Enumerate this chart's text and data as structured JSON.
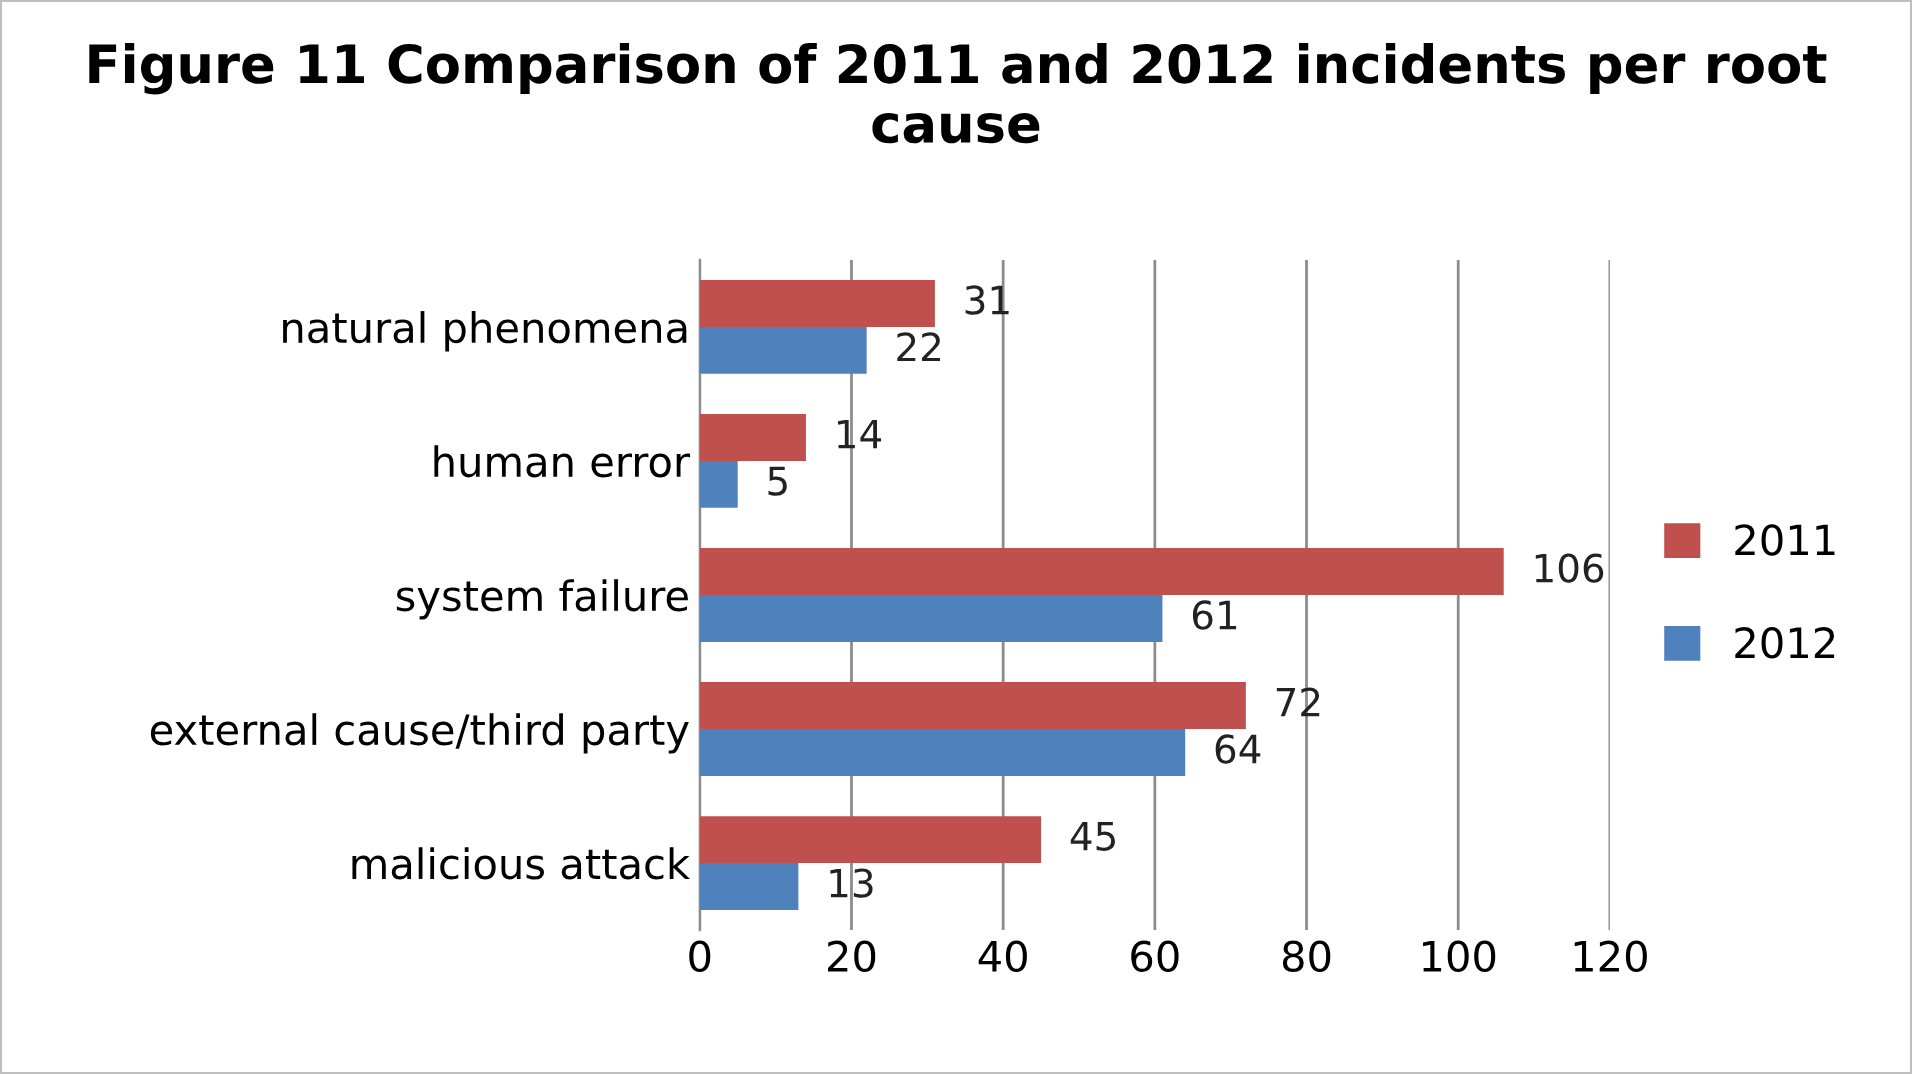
{
  "chart_data": {
    "type": "bar",
    "orientation": "horizontal",
    "title": "Figure 11 Comparison of 2011 and 2012 incidents per root cause",
    "categories": [
      "natural phenomena",
      "human error",
      "system failure",
      "external cause/third party",
      "malicious attack"
    ],
    "series": [
      {
        "name": "2011",
        "color": "#c0504d",
        "values": [
          31,
          14,
          106,
          72,
          45
        ]
      },
      {
        "name": "2012",
        "color": "#4f81bd",
        "values": [
          22,
          5,
          61,
          64,
          13
        ]
      }
    ],
    "xlim": [
      0,
      120
    ],
    "xticks": [
      0,
      20,
      40,
      60,
      80,
      100,
      120
    ],
    "grid": "x",
    "legend": "right",
    "data_labels": true
  }
}
